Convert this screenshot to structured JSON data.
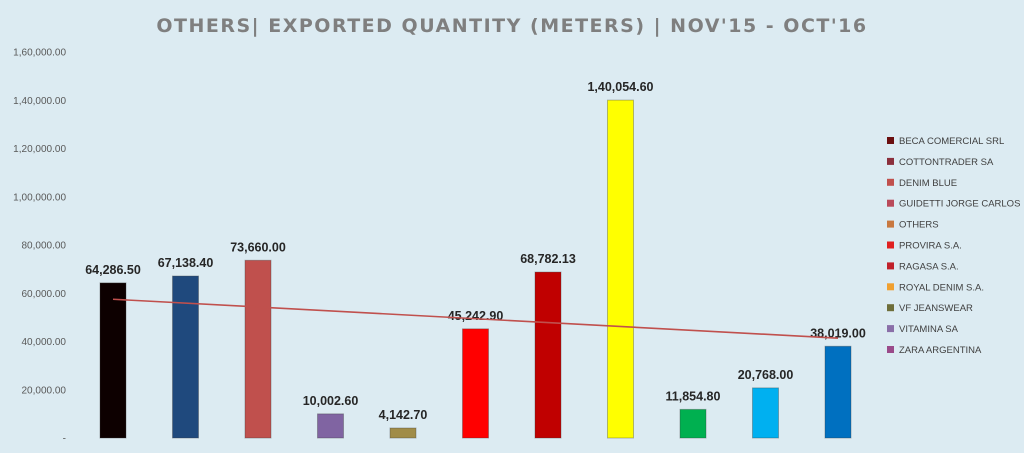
{
  "chart_data": {
    "type": "bar",
    "title": "OTHERS| EXPORTED QUANTITY (METERS) | NOV'15 - OCT'16",
    "xlabel": "",
    "ylabel": "",
    "ylim": [
      0,
      160000
    ],
    "yticks": [
      "-",
      "20,000.00",
      "40,000.00",
      "60,000.00",
      "80,000.00",
      "1,00,000.00",
      "1,20,000.00",
      "1,40,000.00",
      "1,60,000.00"
    ],
    "grid": false,
    "legend_position": "right",
    "trendline": "linear",
    "trendline_color": "#c0504d",
    "series": [
      {
        "name": "BECA COMERCIAL SRL",
        "value": 64286.5,
        "label": "64,286.50",
        "color": "#0d0000",
        "legend_color": "#6b0f0f"
      },
      {
        "name": "COTTONTRADER SA",
        "value": 67138.4,
        "label": "67,138.40",
        "color": "#1f497d",
        "legend_color": "#8b2f3c"
      },
      {
        "name": "DENIM BLUE",
        "value": 73660.0,
        "label": "73,660.00",
        "color": "#c0504d",
        "legend_color": "#c0504d"
      },
      {
        "name": "GUIDETTI JORGE CARLOS",
        "value": 10002.6,
        "label": "10,002.60",
        "color": "#8064a2",
        "legend_color": "#b94a5a"
      },
      {
        "name": "OTHERS",
        "value": 4142.7,
        "label": "4,142.70",
        "color": "#a08c48",
        "legend_color": "#c87840"
      },
      {
        "name": "PROVIRA S.A.",
        "value": 45242.9,
        "label": "45,242.90",
        "color": "#ff0000",
        "legend_color": "#e02020"
      },
      {
        "name": "RAGASA S.A.",
        "value": 68782.13,
        "label": "68,782.13",
        "color": "#c00000",
        "legend_color": "#c0202a"
      },
      {
        "name": "ROYAL DENIM S.A.",
        "value": 140054.6,
        "label": "1,40,054.60",
        "color": "#ffff00",
        "legend_color": "#f0a030"
      },
      {
        "name": "VF JEANSWEAR",
        "value": 11854.8,
        "label": "11,854.80",
        "color": "#00b050",
        "legend_color": "#6e6e3a"
      },
      {
        "name": "VITAMINA SA",
        "value": 20768.0,
        "label": "20,768.00",
        "color": "#00b0f0",
        "legend_color": "#8a6fa8"
      },
      {
        "name": "ZARA ARGENTINA",
        "value": 38019.0,
        "label": "38,019.00",
        "color": "#0070c0",
        "legend_color": "#9a4a8a"
      }
    ]
  }
}
